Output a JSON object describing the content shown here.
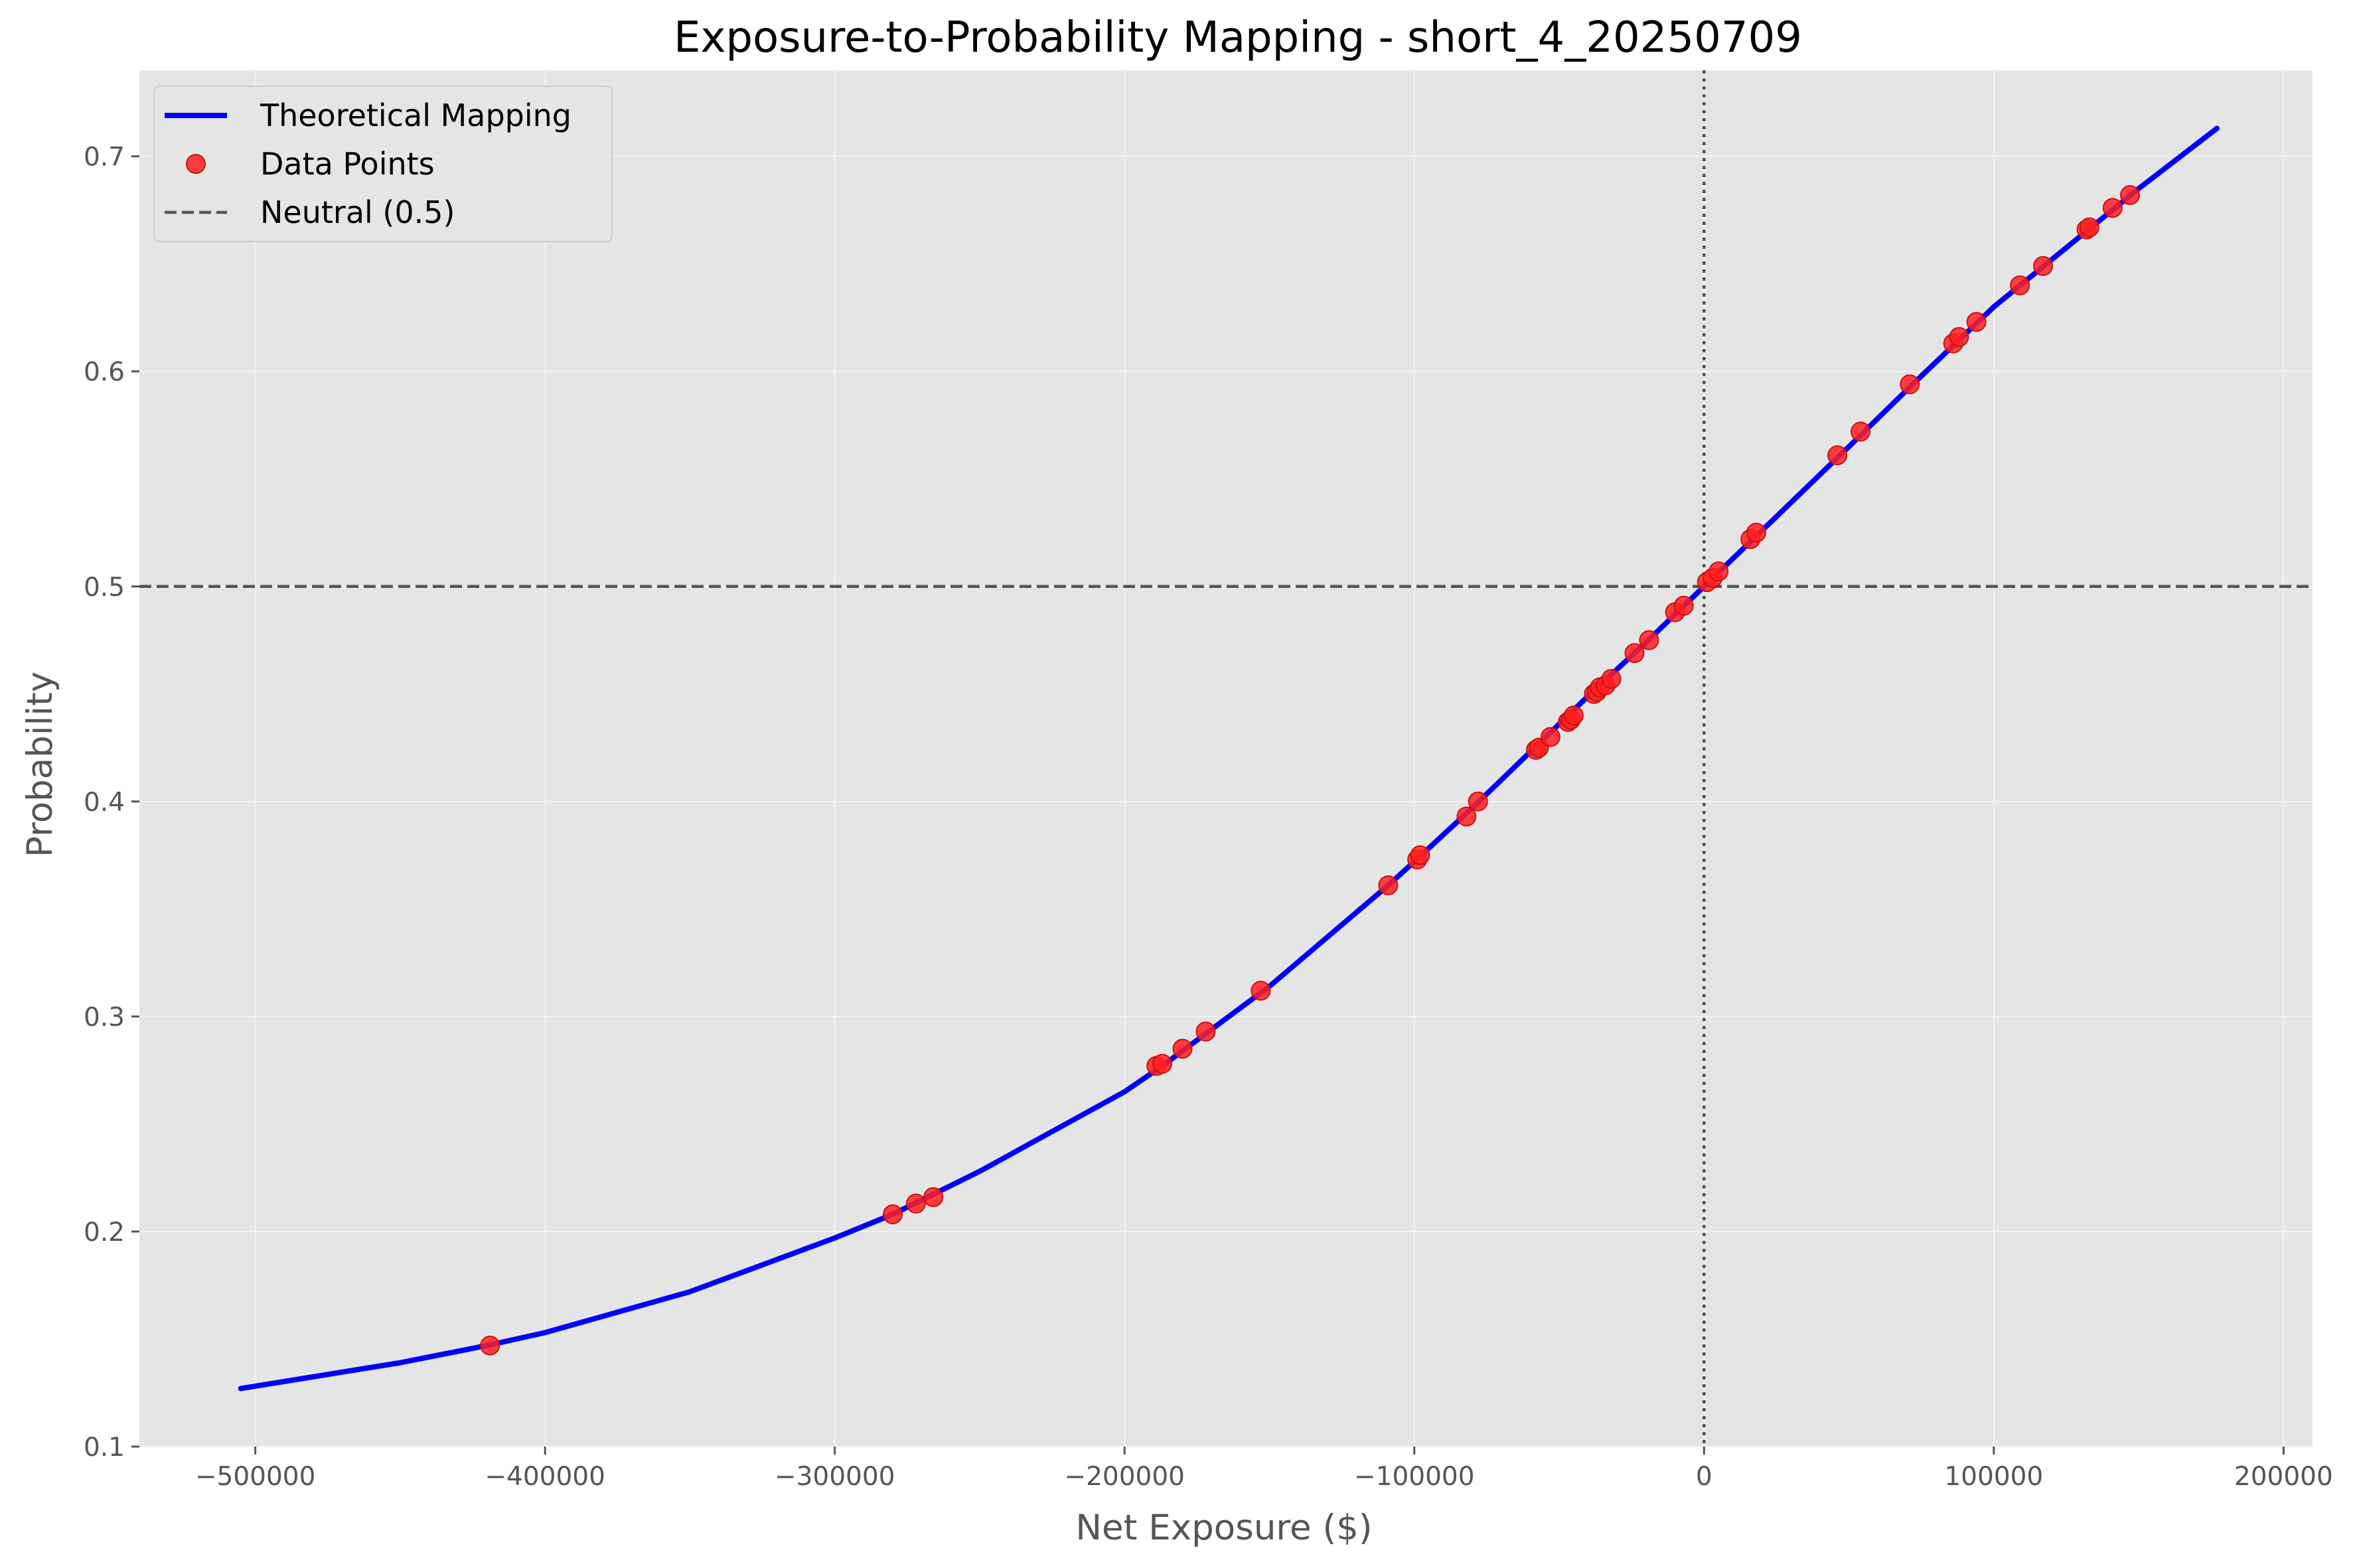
{
  "chart_data": {
    "type": "line",
    "title": "Exposure-to-Probability Mapping - short_4_20250709",
    "xlabel": "Net Exposure ($)",
    "ylabel": "Probability",
    "xlim": [
      -540000,
      210000
    ],
    "ylim": [
      0.1,
      0.74
    ],
    "xticks": [
      -500000,
      -400000,
      -300000,
      -200000,
      -100000,
      0,
      100000,
      200000
    ],
    "xtick_labels": [
      "−500000",
      "−400000",
      "−300000",
      "−200000",
      "−100000",
      "0",
      "100000",
      "200000"
    ],
    "yticks": [
      0.1,
      0.2,
      0.3,
      0.4,
      0.5,
      0.6,
      0.7
    ],
    "ytick_labels": [
      "0.1",
      "0.2",
      "0.3",
      "0.4",
      "0.5",
      "0.6",
      "0.7"
    ],
    "grid": true,
    "legend_position": "top-left",
    "legend": [
      {
        "label": "Theoretical Mapping",
        "kind": "line"
      },
      {
        "label": "Data Points",
        "kind": "marker"
      },
      {
        "label": "Neutral (0.5)",
        "kind": "dashed"
      }
    ],
    "series": [
      {
        "name": "Theoretical Mapping",
        "kind": "line",
        "color": "#0000ff",
        "points": [
          [
            -505000,
            0.127
          ],
          [
            -450000,
            0.139
          ],
          [
            -420000,
            0.147
          ],
          [
            -400000,
            0.153
          ],
          [
            -350000,
            0.172
          ],
          [
            -300000,
            0.197
          ],
          [
            -280000,
            0.208
          ],
          [
            -250000,
            0.228
          ],
          [
            -200000,
            0.265
          ],
          [
            -187000,
            0.277
          ],
          [
            -150000,
            0.314
          ],
          [
            -109000,
            0.361
          ],
          [
            -100000,
            0.372
          ],
          [
            -80000,
            0.397
          ],
          [
            -60000,
            0.423
          ],
          [
            -40000,
            0.449
          ],
          [
            -20000,
            0.474
          ],
          [
            0,
            0.5
          ],
          [
            20000,
            0.526
          ],
          [
            50000,
            0.565
          ],
          [
            72000,
            0.594
          ],
          [
            100000,
            0.63
          ],
          [
            120000,
            0.652
          ],
          [
            150000,
            0.685
          ],
          [
            177000,
            0.713
          ]
        ]
      },
      {
        "name": "Data Points",
        "kind": "scatter",
        "color": "#ff2020",
        "points": [
          [
            -419000,
            0.147
          ],
          [
            -280000,
            0.208
          ],
          [
            -272000,
            0.213
          ],
          [
            -266000,
            0.216
          ],
          [
            -189000,
            0.277
          ],
          [
            -187000,
            0.278
          ],
          [
            -180000,
            0.285
          ],
          [
            -172000,
            0.293
          ],
          [
            -153000,
            0.312
          ],
          [
            -109000,
            0.361
          ],
          [
            -99000,
            0.373
          ],
          [
            -98000,
            0.375
          ],
          [
            -82000,
            0.393
          ],
          [
            -78000,
            0.4
          ],
          [
            -58000,
            0.424
          ],
          [
            -57000,
            0.425
          ],
          [
            -53000,
            0.43
          ],
          [
            -47000,
            0.437
          ],
          [
            -46000,
            0.438
          ],
          [
            -45000,
            0.44
          ],
          [
            -38000,
            0.45
          ],
          [
            -37000,
            0.451
          ],
          [
            -36000,
            0.453
          ],
          [
            -34000,
            0.454
          ],
          [
            -32000,
            0.457
          ],
          [
            -24000,
            0.469
          ],
          [
            -19000,
            0.475
          ],
          [
            -10000,
            0.488
          ],
          [
            -7000,
            0.491
          ],
          [
            1000,
            0.502
          ],
          [
            3000,
            0.504
          ],
          [
            5000,
            0.507
          ],
          [
            16000,
            0.522
          ],
          [
            18000,
            0.525
          ],
          [
            46000,
            0.561
          ],
          [
            54000,
            0.572
          ],
          [
            71000,
            0.594
          ],
          [
            86000,
            0.613
          ],
          [
            88000,
            0.616
          ],
          [
            94000,
            0.623
          ],
          [
            109000,
            0.64
          ],
          [
            117000,
            0.649
          ],
          [
            132000,
            0.666
          ],
          [
            133000,
            0.667
          ],
          [
            141000,
            0.676
          ],
          [
            147000,
            0.682
          ]
        ]
      },
      {
        "name": "Neutral (0.5)",
        "kind": "hline",
        "color": "#555555",
        "y": 0.5
      }
    ],
    "reference_lines": [
      {
        "kind": "vline",
        "x": 0,
        "color": "#555555",
        "style": "dotted"
      }
    ],
    "colors": {
      "background": "#e5e5e5",
      "grid": "#f2f2f2",
      "curve": "#0000ff",
      "points": "#ff2020",
      "points_edge": "#cc1010",
      "reference": "#555555"
    }
  }
}
